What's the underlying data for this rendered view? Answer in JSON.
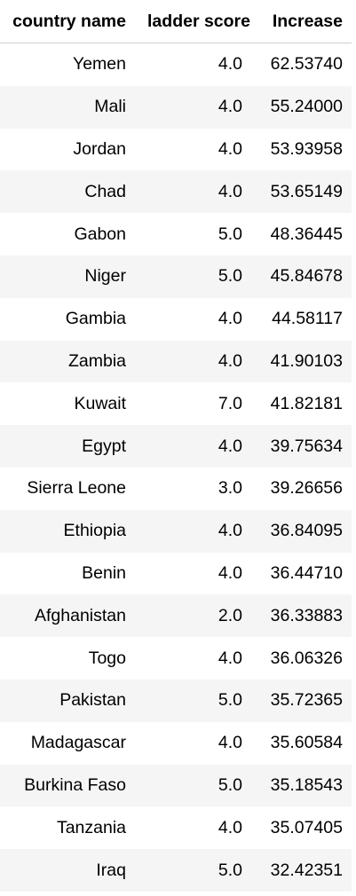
{
  "table": {
    "columns": [
      "country name",
      "ladder score",
      "Increase"
    ],
    "rows": [
      {
        "country": "Yemen",
        "ladder": "4.0",
        "increase": "62.53740"
      },
      {
        "country": "Mali",
        "ladder": "4.0",
        "increase": "55.24000"
      },
      {
        "country": "Jordan",
        "ladder": "4.0",
        "increase": "53.93958"
      },
      {
        "country": "Chad",
        "ladder": "4.0",
        "increase": "53.65149"
      },
      {
        "country": "Gabon",
        "ladder": "5.0",
        "increase": "48.36445"
      },
      {
        "country": "Niger",
        "ladder": "5.0",
        "increase": "45.84678"
      },
      {
        "country": "Gambia",
        "ladder": "4.0",
        "increase": "44.58117"
      },
      {
        "country": "Zambia",
        "ladder": "4.0",
        "increase": "41.90103"
      },
      {
        "country": "Kuwait",
        "ladder": "7.0",
        "increase": "41.82181"
      },
      {
        "country": "Egypt",
        "ladder": "4.0",
        "increase": "39.75634"
      },
      {
        "country": "Sierra Leone",
        "ladder": "3.0",
        "increase": "39.26656"
      },
      {
        "country": "Ethiopia",
        "ladder": "4.0",
        "increase": "36.84095"
      },
      {
        "country": "Benin",
        "ladder": "4.0",
        "increase": "36.44710"
      },
      {
        "country": "Afghanistan",
        "ladder": "2.0",
        "increase": "36.33883"
      },
      {
        "country": "Togo",
        "ladder": "4.0",
        "increase": "36.06326"
      },
      {
        "country": "Pakistan",
        "ladder": "5.0",
        "increase": "35.72365"
      },
      {
        "country": "Madagascar",
        "ladder": "4.0",
        "increase": "35.60584"
      },
      {
        "country": "Burkina Faso",
        "ladder": "5.0",
        "increase": "35.18543"
      },
      {
        "country": "Tanzania",
        "ladder": "4.0",
        "increase": "35.07405"
      },
      {
        "country": "Iraq",
        "ladder": "5.0",
        "increase": "32.42351"
      }
    ]
  }
}
